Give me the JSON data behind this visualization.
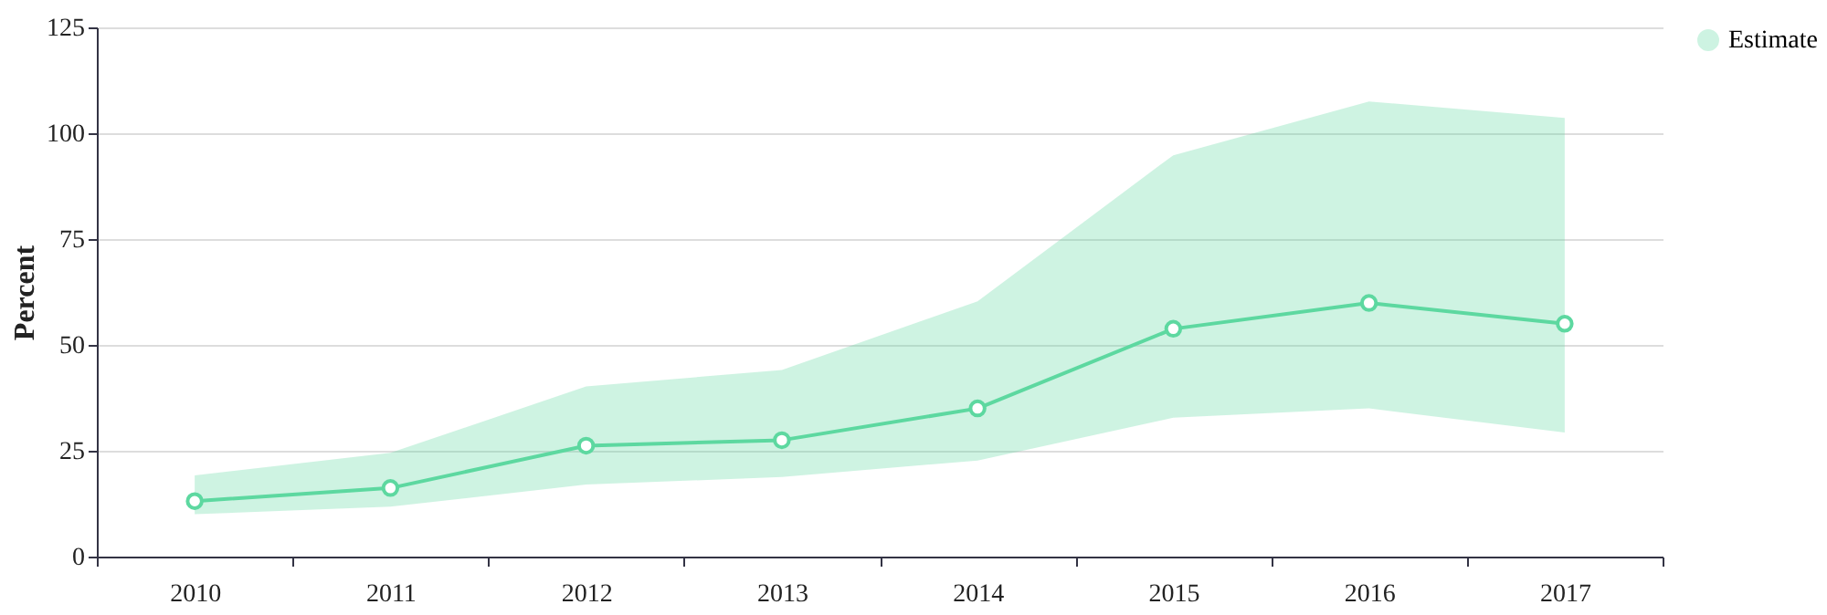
{
  "chart_data": {
    "type": "line",
    "ylabel": "Percent",
    "categories": [
      "2010",
      "2011",
      "2012",
      "2013",
      "2014",
      "2015",
      "2016",
      "2017"
    ],
    "series": [
      {
        "name": "Estimate",
        "color": "#5dd8a0",
        "values": [
          13.1,
          16.2,
          26.2,
          27.5,
          35,
          53.8,
          59.9,
          55
        ],
        "lower": [
          10,
          11.8,
          17,
          18.8,
          22.7,
          32.8,
          35,
          29.3
        ],
        "upper": [
          19.2,
          24.5,
          40.2,
          44.1,
          60.3,
          94.8,
          107.5,
          103.6
        ]
      }
    ],
    "ylim": [
      0,
      125
    ],
    "yticks": [
      0,
      25,
      50,
      75,
      100,
      125
    ],
    "grid": "y",
    "legend": "top right",
    "marker": "circle",
    "line_style": "solid"
  }
}
